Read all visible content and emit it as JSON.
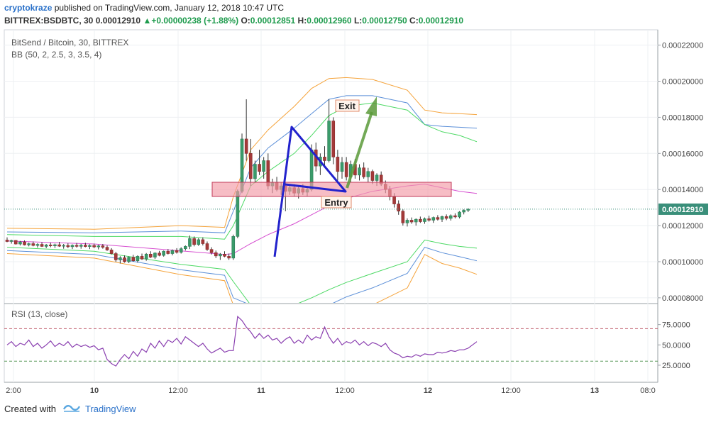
{
  "header": {
    "author": "cryptokraze",
    "published_text": "published on TradingView.com, January 12, 2018 10:47 UTC",
    "symbol": "BITTREX:BSDBTC, 30",
    "last": "0.00012910",
    "change": "+0.00000238 (+1.88%)",
    "o_label": "O:",
    "o": "0.00012851",
    "h_label": "H:",
    "h": "0.00012960",
    "l_label": "L:",
    "l": "0.00012750",
    "c_label": "C:",
    "c": "0.00012910"
  },
  "footer": {
    "created_with": "Created with",
    "brand": "TradingView"
  },
  "colors": {
    "up": "#26a69a",
    "down": "#ef5350",
    "bb_outer": "#f5a33a",
    "bb_mid": "#5b8fd8",
    "bb_inner": "#4cd964",
    "basis": "#d64fd0",
    "rsi": "#8a3fb0",
    "band": "#f29aa6",
    "zigzag": "#2222cc",
    "arrow": "#5a9a3a",
    "price_tag": "#3a8f7a"
  },
  "chart_data": [
    {
      "type": "candlestick",
      "title": "BitSend / Bitcoin, 30, BITTREX",
      "indicator_label": "BB (50, 2, 2.5, 3, 3.5, 4)",
      "y_ticks": [
        "0.00008000",
        "0.00010000",
        "0.00012000",
        "0.00014000",
        "0.00016000",
        "0.00018000",
        "0.00020000",
        "0.00022000"
      ],
      "ylim": [
        7.72e-05,
        0.0002285
      ],
      "x_ticks": [
        "2:00",
        "10",
        "12:00",
        "11",
        "12:00",
        "12",
        "12:00",
        "13",
        "08:0"
      ],
      "last_price_label": "0.00012910",
      "last_price": 0.0001291,
      "annotations": [
        "Exit",
        "Entry"
      ],
      "candles": [
        [
          0.000112,
          0.0001135,
          0.0001108,
          0.0001112
        ],
        [
          0.0001112,
          0.0001122,
          0.00011,
          0.0001118
        ],
        [
          0.0001118,
          0.000112,
          0.0001095,
          0.0001098
        ],
        [
          0.0001098,
          0.0001115,
          0.000109,
          0.000111
        ],
        [
          0.000111,
          0.0001118,
          0.000109,
          0.0001093
        ],
        [
          0.0001093,
          0.0001105,
          0.0001085,
          0.00011
        ],
        [
          0.00011,
          0.0001112,
          0.0001085,
          0.000109
        ],
        [
          0.000109,
          0.0001102,
          0.0001078,
          0.0001096
        ],
        [
          0.0001096,
          0.0001108,
          0.0001082,
          0.0001085
        ],
        [
          0.0001085,
          0.0001098,
          0.0001075,
          0.0001093
        ],
        [
          0.0001093,
          0.0001105,
          0.000108,
          0.0001088
        ],
        [
          0.0001088,
          0.00011,
          0.0001076,
          0.0001094
        ],
        [
          0.0001094,
          0.000111,
          0.0001082,
          0.0001086
        ],
        [
          0.0001086,
          0.0001098,
          0.0001072,
          0.000109
        ],
        [
          0.000109,
          0.0001102,
          0.0001075,
          0.0001083
        ],
        [
          0.0001083,
          0.0001096,
          0.000107,
          0.0001091
        ],
        [
          0.0001091,
          0.0001104,
          0.0001078,
          0.0001085
        ],
        [
          0.0001085,
          0.0001098,
          0.0001072,
          0.0001092
        ],
        [
          0.0001092,
          0.0001105,
          0.000108,
          0.0001084
        ],
        [
          0.0001084,
          0.0001096,
          0.000107,
          0.000109
        ],
        [
          0.000109,
          0.00011,
          0.0001075,
          0.0001082
        ],
        [
          0.0001082,
          0.0001094,
          0.0001068,
          0.0001088
        ],
        [
          0.0001088,
          0.0001098,
          0.0001072,
          0.000108
        ],
        [
          0.000108,
          0.000109,
          0.000106,
          0.0001065
        ],
        [
          0.0001065,
          0.0001075,
          0.000104,
          0.0001045
        ],
        [
          0.0001045,
          0.0001055,
          0.0001,
          0.000101
        ],
        [
          0.000101,
          0.000103,
          9.9e-05,
          0.0001022
        ],
        [
          0.0001022,
          0.0001035,
          9.95e-05,
          0.0001
        ],
        [
          0.0001,
          0.000103,
          9.92e-05,
          0.0001025
        ],
        [
          0.0001025,
          0.0001038,
          0.0001,
          0.0001005
        ],
        [
          0.0001005,
          0.0001035,
          9.95e-05,
          0.000103
        ],
        [
          0.000103,
          0.0001045,
          0.000101,
          0.0001015
        ],
        [
          0.0001015,
          0.0001048,
          0.0001005,
          0.0001042
        ],
        [
          0.0001042,
          0.0001058,
          0.000102,
          0.0001025
        ],
        [
          0.0001025,
          0.0001052,
          0.0001015,
          0.0001048
        ],
        [
          0.0001048,
          0.000106,
          0.000103,
          0.0001035
        ],
        [
          0.0001035,
          0.0001062,
          0.0001028,
          0.0001058
        ],
        [
          0.0001058,
          0.000107,
          0.000104,
          0.0001045
        ],
        [
          0.0001045,
          0.0001068,
          0.0001035,
          0.0001062
        ],
        [
          0.0001062,
          0.0001075,
          0.0001045,
          0.0001052
        ],
        [
          0.0001052,
          0.000108,
          0.0001045,
          0.0001072
        ],
        [
          0.0001072,
          0.000109,
          0.0001062,
          0.0001085
        ],
        [
          0.0001085,
          0.0001145,
          0.000107,
          0.0001128
        ],
        [
          0.0001128,
          0.000114,
          0.0001085,
          0.0001095
        ],
        [
          0.0001095,
          0.000113,
          0.0001088,
          0.0001122
        ],
        [
          0.0001122,
          0.0001135,
          0.000109,
          0.00011
        ],
        [
          0.00011,
          0.0001112,
          0.000106,
          0.0001068
        ],
        [
          0.0001068,
          0.000108,
          0.000104,
          0.000105
        ],
        [
          0.000105,
          0.0001062,
          0.000102,
          0.0001032
        ],
        [
          0.0001032,
          0.0001048,
          0.000101,
          0.0001042
        ],
        [
          0.0001042,
          0.0001058,
          0.0001025,
          0.000103
        ],
        [
          0.000103,
          0.0001045,
          0.000101,
          0.000102
        ],
        [
          0.000102,
          0.000115,
          0.000101,
          0.000114
        ],
        [
          0.000114,
          0.00014,
          0.000113,
          0.000139
        ],
        [
          0.000139,
          0.000171,
          0.000138,
          0.000168
        ],
        [
          0.000168,
          0.00019,
          0.000156,
          0.00016
        ],
        [
          0.00016,
          0.000168,
          0.000142,
          0.000146
        ],
        [
          0.000146,
          0.000156,
          0.000144,
          0.000154
        ],
        [
          0.000154,
          0.000162,
          0.000148,
          0.00015
        ],
        [
          0.00015,
          0.000158,
          0.000146,
          0.000156
        ],
        [
          0.000156,
          0.00016,
          0.00014,
          0.000142
        ],
        [
          0.000142,
          0.000146,
          0.000138,
          0.000144
        ],
        [
          0.000144,
          0.000147,
          0.000139,
          0.00014
        ],
        [
          0.00014,
          0.000144,
          0.000137,
          0.000142
        ],
        [
          0.000142,
          0.000144,
          0.000128,
          0.000139
        ],
        [
          0.000139,
          0.000142,
          0.000137,
          0.000141
        ],
        [
          0.000141,
          0.000143,
          0.000136,
          0.000138
        ],
        [
          0.000138,
          0.000142,
          0.000135,
          0.0001405
        ],
        [
          0.0001405,
          0.000143,
          0.000137,
          0.0001385
        ],
        [
          0.0001385,
          0.000142,
          0.000136,
          0.00014
        ],
        [
          0.00014,
          0.000165,
          0.000139,
          0.000162
        ],
        [
          0.000162,
          0.000166,
          0.00015,
          0.000153
        ],
        [
          0.000153,
          0.00016,
          0.000148,
          0.000158
        ],
        [
          0.000158,
          0.000164,
          0.000152,
          0.000156
        ],
        [
          0.000156,
          0.00019,
          0.000155,
          0.000178
        ],
        [
          0.000178,
          0.00018,
          0.000154,
          0.000158
        ],
        [
          0.000158,
          0.000162,
          0.000145,
          0.00015
        ],
        [
          0.00015,
          0.000158,
          0.000146,
          0.000155
        ],
        [
          0.000155,
          0.000158,
          0.000145,
          0.000147
        ],
        [
          0.000147,
          0.000156,
          0.000144,
          0.000154
        ],
        [
          0.000154,
          0.000157,
          0.000146,
          0.000148
        ],
        [
          0.000148,
          0.000154,
          0.000145,
          0.000152
        ],
        [
          0.000152,
          0.000155,
          0.000146,
          0.000147
        ],
        [
          0.000147,
          0.000152,
          0.000144,
          0.00015
        ],
        [
          0.00015,
          0.000151,
          0.000143,
          0.000145
        ],
        [
          0.000145,
          0.000149,
          0.000142,
          0.000148
        ],
        [
          0.000148,
          0.00015,
          0.000142,
          0.000143
        ],
        [
          0.000143,
          0.000145,
          0.000138,
          0.00014
        ],
        [
          0.00014,
          0.000142,
          0.000134,
          0.000136
        ],
        [
          0.000136,
          0.000138,
          0.00013,
          0.000132
        ],
        [
          0.000132,
          0.000134,
          0.000126,
          0.000128
        ],
        [
          0.000128,
          0.000129,
          0.00012,
          0.0001215
        ],
        [
          0.0001215,
          0.000124,
          0.0001195,
          0.000123
        ],
        [
          0.000123,
          0.0001245,
          0.000121,
          0.000122
        ],
        [
          0.000122,
          0.000124,
          0.00012,
          0.0001235
        ],
        [
          0.0001235,
          0.000125,
          0.0001215,
          0.0001222
        ],
        [
          0.0001222,
          0.0001245,
          0.000121,
          0.0001238
        ],
        [
          0.0001238,
          0.0001255,
          0.0001222,
          0.000123
        ],
        [
          0.000123,
          0.000125,
          0.0001215,
          0.0001245
        ],
        [
          0.0001245,
          0.0001258,
          0.0001228,
          0.0001235
        ],
        [
          0.0001235,
          0.0001255,
          0.000122,
          0.000125
        ],
        [
          0.000125,
          0.0001262,
          0.000123,
          0.000124
        ],
        [
          0.000124,
          0.0001262,
          0.0001228,
          0.0001255
        ],
        [
          0.0001255,
          0.0001268,
          0.000124,
          0.0001248
        ],
        [
          0.0001248,
          0.000128,
          0.000124,
          0.0001275
        ],
        [
          0.0001275,
          0.000129,
          0.0001262,
          0.0001285
        ],
        [
          0.0001285,
          0.0001296,
          0.0001275,
          0.0001291
        ]
      ],
      "bollinger": {
        "x_index": [
          0,
          20,
          40,
          50,
          52,
          56,
          60,
          66,
          70,
          74,
          78,
          84,
          92,
          96,
          100,
          104,
          108
        ],
        "basis": [
          0.0001115,
          0.0001098,
          0.000106,
          0.000104,
          0.0001045,
          0.00011,
          0.000115,
          0.000121,
          0.000126,
          0.000131,
          0.000135,
          0.000139,
          0.000142,
          0.000143,
          0.000141,
          0.000139,
          0.0001378
        ],
        "upper1": [
          0.000115,
          0.000114,
          0.000114,
          0.0001125,
          0.00012,
          0.000142,
          0.00015,
          0.00016,
          0.00017,
          0.000181,
          0.000186,
          0.000188,
          0.000184,
          0.000176,
          0.000172,
          0.00017,
          0.0001665
        ],
        "lower1": [
          0.000108,
          0.0001058,
          9.85e-05,
          9.58e-05,
          8.9e-05,
          7.6e-05,
          7.6e-05,
          7.6e-05,
          8e-05,
          8.45e-05,
          8.85e-05,
          9.35e-05,
          0.0001,
          0.000112,
          0.00011,
          0.0001085,
          0.0001075
        ],
        "upper2": [
          0.0001165,
          0.000116,
          0.000117,
          0.000116,
          0.000128,
          0.000152,
          0.000163,
          0.000174,
          0.000182,
          0.00019,
          0.000192,
          0.000192,
          0.000188,
          0.000176,
          0.000175,
          0.0001745,
          0.000174
        ],
        "lower2": [
          0.0001062,
          0.000104,
          9.55e-05,
          9.25e-05,
          8e-05,
          7.6e-05,
          7.6e-05,
          7.6e-05,
          7.6e-05,
          7.6e-05,
          8.05e-05,
          8.55e-05,
          9.35e-05,
          0.000108,
          0.000105,
          0.0001028,
          0.0001005
        ],
        "upper3": [
          0.0001185,
          0.000118,
          0.00012,
          0.000119,
          0.000136,
          0.000162,
          0.000173,
          0.000186,
          0.000196,
          0.0002015,
          0.000202,
          0.000201,
          0.000195,
          0.000184,
          0.0001825,
          0.000182,
          0.0001815
        ],
        "lower3": [
          0.0001045,
          0.000102,
          9.28e-05,
          8.95e-05,
          7.6e-05,
          7.6e-05,
          7.6e-05,
          7.6e-05,
          7.6e-05,
          7.6e-05,
          7.6e-05,
          7.6e-05,
          8.55e-05,
          0.000104,
          9.9e-05,
          9.65e-05,
          9.3e-05
        ]
      },
      "rsi": {
        "label": "RSI (13, close)",
        "ticks": [
          "75.0000",
          "50.0000",
          "25.0000"
        ],
        "ylim": [
          4,
          100
        ],
        "upper_line": 70,
        "lower_line": 30,
        "values": [
          50,
          54,
          48,
          52,
          50,
          56,
          48,
          52,
          46,
          50,
          55,
          48,
          52,
          49,
          54,
          47,
          51,
          48,
          50,
          47,
          49,
          44,
          46,
          32,
          27,
          24,
          32,
          38,
          33,
          42,
          36,
          45,
          41,
          52,
          46,
          55,
          48,
          56,
          53,
          58,
          51,
          60,
          56,
          52,
          48,
          52,
          45,
          40,
          43,
          46,
          41,
          43,
          43,
          85,
          80,
          72,
          66,
          58,
          64,
          58,
          62,
          56,
          58,
          52,
          57,
          60,
          52,
          56,
          52,
          62,
          56,
          60,
          58,
          72,
          60,
          52,
          58,
          50,
          54,
          52,
          56,
          50,
          54,
          49,
          53,
          51,
          48,
          52,
          44,
          40,
          38,
          34,
          36,
          35,
          38,
          36,
          39,
          38,
          38,
          41,
          40,
          41,
          43,
          42,
          44,
          44,
          46,
          50,
          54
        ]
      }
    }
  ]
}
